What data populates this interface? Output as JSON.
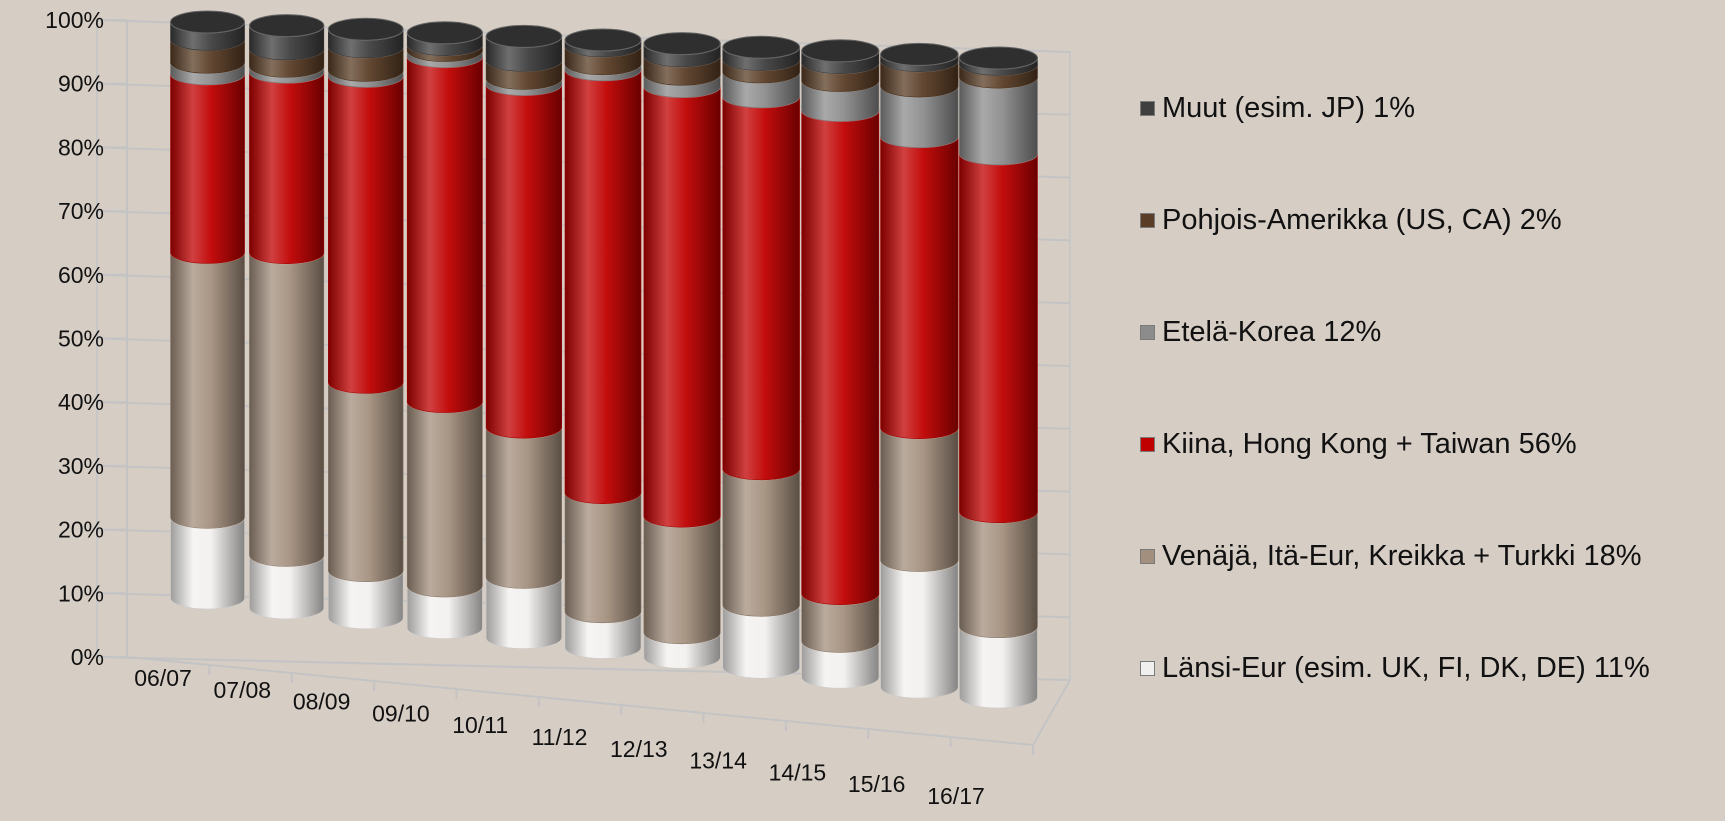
{
  "chart_data": {
    "type": "bar",
    "stacked": true,
    "percent": true,
    "style": "3d-cylinder",
    "title": "",
    "xlabel": "",
    "ylabel": "",
    "ylim": [
      0,
      100
    ],
    "yticks": [
      "0%",
      "10%",
      "20%",
      "30%",
      "40%",
      "50%",
      "60%",
      "70%",
      "80%",
      "90%",
      "100%"
    ],
    "grid": true,
    "legend_position": "right",
    "categories": [
      "06/07",
      "07/08",
      "08/09",
      "09/10",
      "10/11",
      "11/12",
      "12/13",
      "13/14",
      "14/15",
      "15/16",
      "16/17"
    ],
    "series": [
      {
        "name": "Länsi-Eur (esim. UK, FI, DK, DE) 11%",
        "color": "#f2f0ee",
        "values": [
          14,
          9,
          8,
          7,
          10,
          6,
          4,
          10,
          6,
          20,
          11
        ]
      },
      {
        "name": "Venäjä, Itä-Eur, Kreikka + Turkki 18%",
        "color": "#a38f7d",
        "values": [
          46,
          52,
          32,
          31,
          25,
          20,
          19,
          22,
          8,
          21,
          18
        ]
      },
      {
        "name": "Kiina, Hong Kong + Taiwan 56%",
        "color": "#c00000",
        "values": [
          31,
          31,
          52,
          58,
          57,
          71,
          70,
          60,
          81,
          46,
          56
        ]
      },
      {
        "name": "Etelä-Korea 12%",
        "color": "#8c8c8c",
        "values": [
          2,
          1,
          1,
          1,
          1,
          1,
          2,
          4,
          5,
          8,
          12
        ]
      },
      {
        "name": "Pohjois-Amerikka (US, CA) 2%",
        "color": "#5a3d26",
        "values": [
          4,
          3,
          4,
          1,
          3,
          3,
          3,
          2,
          3,
          4,
          2
        ]
      },
      {
        "name": "Muut (esim. JP) 1%",
        "color": "#3f3f3f",
        "values": [
          3,
          4,
          3,
          2,
          4,
          1,
          2,
          2,
          2,
          1,
          1
        ]
      }
    ]
  }
}
